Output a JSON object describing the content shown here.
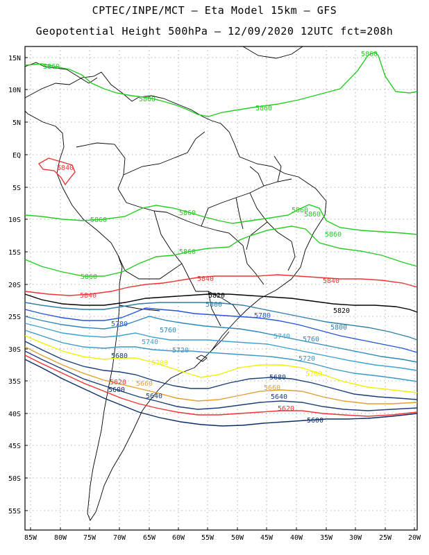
{
  "title_line1": "CPTEC/INPE/MCT  –  Eta Model 15km  –  GFS",
  "title_line2": "Geopotential Height 500hPa – 12/09/2020 12UTC fct=208h",
  "lat_labels": [
    "15N",
    "10N",
    "5N",
    "EQ",
    "5S",
    "10S",
    "15S",
    "20S",
    "25S",
    "30S",
    "35S",
    "40S",
    "45S",
    "50S",
    "55S"
  ],
  "lon_labels": [
    "85W",
    "80W",
    "75W",
    "70W",
    "65W",
    "60W",
    "55W",
    "50W",
    "45W",
    "40W",
    "35W",
    "30W",
    "25W",
    "20W"
  ],
  "colors": {
    "c5860": "#22cc22",
    "c5840": "#ee3333",
    "c5820": "#000000",
    "c5800": "#2e7fa6",
    "c5780": "#2255dd",
    "c5760": "#2f86b6",
    "c5740": "#3aa1d3",
    "c5720": "#3c96c8",
    "c5700": "#f0f000",
    "c5680": "#163d7a",
    "c5660": "#e0a030",
    "c5640": "#1c3e78",
    "c5620": "#ee3333",
    "c5600": "#0a2a66"
  },
  "contour_labels": [
    {
      "id": "l5860a",
      "text": "5860",
      "color": "c5860"
    },
    {
      "id": "l5860b",
      "text": "5860",
      "color": "c5860"
    },
    {
      "id": "l5860c",
      "text": "5860",
      "color": "c5860"
    },
    {
      "id": "l5860d",
      "text": "5860",
      "color": "c5860"
    },
    {
      "id": "l5860e",
      "text": "5860",
      "color": "c5860"
    },
    {
      "id": "l5860f",
      "text": "5860",
      "color": "c5860"
    },
    {
      "id": "l5860g",
      "text": "5860",
      "color": "c5860"
    },
    {
      "id": "l5860h",
      "text": "5860",
      "color": "c5860"
    },
    {
      "id": "l5860i",
      "text": "5860",
      "color": "c5860"
    },
    {
      "id": "l5860j",
      "text": "5860",
      "color": "c5860"
    },
    {
      "id": "l5860k",
      "text": "5860",
      "color": "c5860"
    },
    {
      "id": "l5840a",
      "text": "5840",
      "color": "c5840"
    },
    {
      "id": "l5840b",
      "text": "5840",
      "color": "c5840"
    },
    {
      "id": "l5840c",
      "text": "5840",
      "color": "c5840"
    },
    {
      "id": "l5840d",
      "text": "5840",
      "color": "c5840"
    },
    {
      "id": "l5820a",
      "text": "5820",
      "color": "c5820"
    },
    {
      "id": "l5820b",
      "text": "5820",
      "color": "c5820"
    },
    {
      "id": "l5800a",
      "text": "5800",
      "color": "c5800"
    },
    {
      "id": "l5800b",
      "text": "5800",
      "color": "c5800"
    },
    {
      "id": "l5780a",
      "text": "5780",
      "color": "c5780"
    },
    {
      "id": "l5780b",
      "text": "5780",
      "color": "c5780"
    },
    {
      "id": "l5760a",
      "text": "5760",
      "color": "c5760"
    },
    {
      "id": "l5760b",
      "text": "5760",
      "color": "c5760"
    },
    {
      "id": "l5740a",
      "text": "5740",
      "color": "c5740"
    },
    {
      "id": "l5740b",
      "text": "5740",
      "color": "c5740"
    },
    {
      "id": "l5720a",
      "text": "5720",
      "color": "c5720"
    },
    {
      "id": "l5720b",
      "text": "5720",
      "color": "c5720"
    },
    {
      "id": "l5700a",
      "text": "5700",
      "color": "c5700"
    },
    {
      "id": "l5700b",
      "text": "5700",
      "color": "c5700"
    },
    {
      "id": "l5680a",
      "text": "5680",
      "color": "c5680"
    },
    {
      "id": "l5680b",
      "text": "5680",
      "color": "c5680"
    },
    {
      "id": "l5660a",
      "text": "5660",
      "color": "c5660"
    },
    {
      "id": "l5660b",
      "text": "5660",
      "color": "c5660"
    },
    {
      "id": "l5640a",
      "text": "5640",
      "color": "c5640"
    },
    {
      "id": "l5640b",
      "text": "5640",
      "color": "c5640"
    },
    {
      "id": "l5620a",
      "text": "5620",
      "color": "c5620"
    },
    {
      "id": "l5620b",
      "text": "5620",
      "color": "c5620"
    },
    {
      "id": "l5600a",
      "text": "5600",
      "color": "c5600"
    },
    {
      "id": "l5600b",
      "text": "5600",
      "color": "c5600"
    }
  ]
}
